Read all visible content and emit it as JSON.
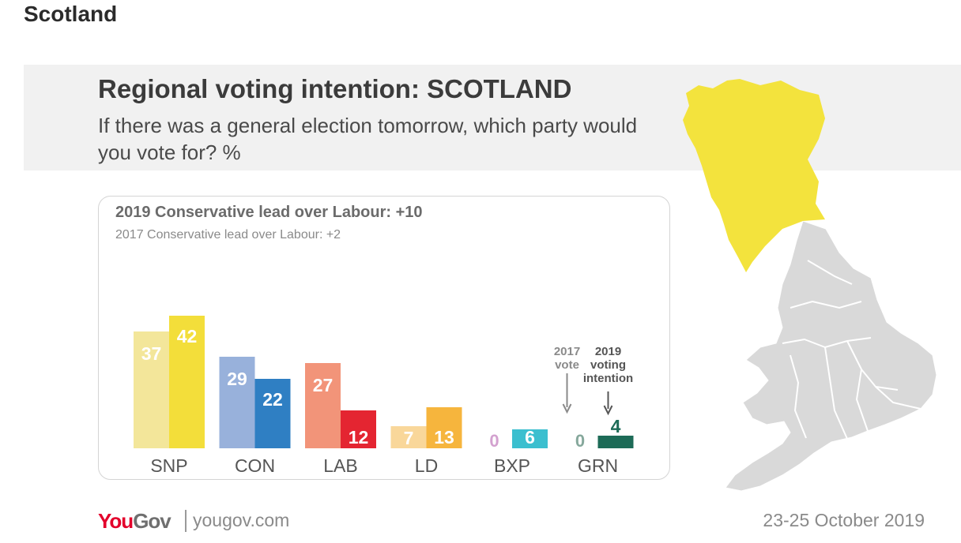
{
  "page": {
    "heading": "Scotland"
  },
  "header": {
    "title": "Regional voting intention: SCOTLAND",
    "subtitle": "If there was a general election tomorrow, which party would you vote for? %"
  },
  "leads": {
    "lead_2019": "2019 Conservative lead over Labour: +10",
    "lead_2017": "2017 Conservative lead over Labour: +2"
  },
  "annotations": {
    "vote_2017": [
      "2017",
      "vote"
    ],
    "intention_2019": [
      "2019",
      "voting",
      "intention"
    ]
  },
  "chart_data": {
    "type": "bar",
    "categories": [
      "SNP",
      "CON",
      "LAB",
      "LD",
      "BXP",
      "GRN"
    ],
    "series": [
      {
        "values": [
          37,
          29,
          27,
          7,
          0,
          0
        ]
      },
      {
        "values": [
          42,
          22,
          12,
          13,
          6,
          4
        ]
      }
    ],
    "colors_2017": [
      "#f3e69a",
      "#98b1db",
      "#f29479",
      "#f9d79a",
      "#d3a1cf",
      "#86a89c"
    ],
    "colors_2019": [
      "#f3de3a",
      "#2f7fc3",
      "#e42531",
      "#f6b53d",
      "#3bbfcf",
      "#1d6b57"
    ],
    "ylim": [
      0,
      45
    ]
  },
  "map": {
    "highlight_color": "#f3e33d",
    "base_color": "#d9d9d9"
  },
  "footer": {
    "brand_you": "You",
    "brand_gov": "Gov",
    "url": "yougov.com",
    "date": "23-25 October 2019"
  }
}
